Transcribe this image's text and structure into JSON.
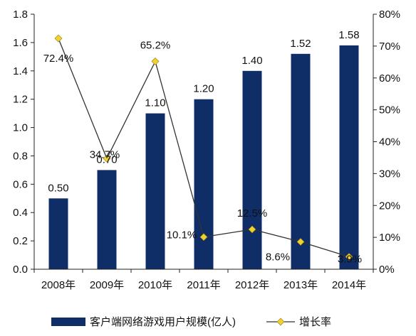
{
  "chart_data": {
    "type": "bar",
    "categories": [
      "2008年",
      "2009年",
      "2010年",
      "2011年",
      "2012年",
      "2013年",
      "2014年"
    ],
    "series": [
      {
        "name": "客户端网络游戏用户规模(亿人)",
        "type": "bar",
        "axis": "left",
        "color": "#0F2D66",
        "values": [
          0.5,
          0.7,
          1.1,
          1.2,
          1.4,
          1.52,
          1.58
        ],
        "labels": [
          "0.50",
          "0.70",
          "1.10",
          "1.20",
          "1.40",
          "1.52",
          "1.58"
        ]
      },
      {
        "name": "增长率",
        "type": "line",
        "axis": "right",
        "line_color": "#333333",
        "marker_color": "#F2D12E",
        "values": [
          72.4,
          34.7,
          65.2,
          10.1,
          12.5,
          8.6,
          3.9
        ],
        "labels": [
          "72.4%",
          "34.7%",
          "65.2%",
          "10.1%",
          "12.5%",
          "8.6%",
          "3.9%"
        ]
      }
    ],
    "y_left": {
      "ylim": [
        0,
        1.8
      ],
      "ticks": [
        "0.0",
        "0.2",
        "0.4",
        "0.6",
        "0.8",
        "1.0",
        "1.2",
        "1.4",
        "1.6",
        "1.8"
      ]
    },
    "y_right": {
      "ylim": [
        0,
        80
      ],
      "ticks": [
        "0%",
        "10%",
        "20%",
        "30%",
        "40%",
        "50%",
        "60%",
        "70%",
        "80%"
      ]
    },
    "grid": false,
    "legend_position": "bottom"
  }
}
